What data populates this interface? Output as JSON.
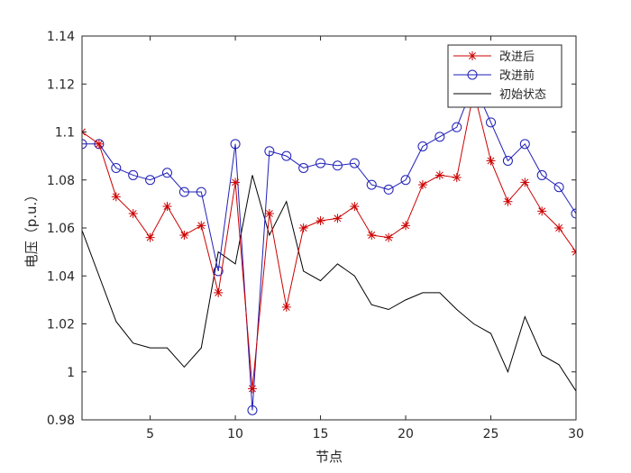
{
  "chart_data": {
    "type": "line",
    "xlabel": "节点",
    "ylabel": "电压（p.u.）",
    "xlim": [
      1,
      30
    ],
    "ylim": [
      0.98,
      1.14
    ],
    "xticks": [
      5,
      10,
      15,
      20,
      25,
      30
    ],
    "yticks": [
      0.98,
      1,
      1.02,
      1.04,
      1.06,
      1.08,
      1.1,
      1.12,
      1.14
    ],
    "ytick_labels": [
      "0.98",
      "1",
      "1.02",
      "1.04",
      "1.06",
      "1.08",
      "1.1",
      "1.12",
      "1.14"
    ],
    "legend_position": "top-right",
    "grid": false,
    "x": [
      1,
      2,
      3,
      4,
      5,
      6,
      7,
      8,
      9,
      10,
      11,
      12,
      13,
      14,
      15,
      16,
      17,
      18,
      19,
      20,
      21,
      22,
      23,
      24,
      25,
      26,
      27,
      28,
      29,
      30
    ],
    "series": [
      {
        "name": "改进后",
        "color": "#cc0000",
        "marker": "asterisk",
        "values": [
          1.1,
          1.095,
          1.073,
          1.066,
          1.056,
          1.069,
          1.057,
          1.061,
          1.033,
          1.079,
          0.993,
          1.066,
          1.027,
          1.06,
          1.063,
          1.064,
          1.069,
          1.057,
          1.056,
          1.061,
          1.078,
          1.082,
          1.081,
          1.117,
          1.088,
          1.071,
          1.079,
          1.067,
          1.06,
          1.05
        ]
      },
      {
        "name": "改进前",
        "color": "#1f1fb8",
        "marker": "circle",
        "values": [
          1.095,
          1.095,
          1.085,
          1.082,
          1.08,
          1.083,
          1.075,
          1.075,
          1.042,
          1.095,
          0.984,
          1.092,
          1.09,
          1.085,
          1.087,
          1.086,
          1.087,
          1.078,
          1.076,
          1.08,
          1.094,
          1.098,
          1.102,
          1.12,
          1.104,
          1.088,
          1.095,
          1.082,
          1.077,
          1.066
        ]
      },
      {
        "name": "初始状态",
        "color": "#000000",
        "marker": "none",
        "values": [
          1.059,
          1.04,
          1.021,
          1.012,
          1.01,
          1.01,
          1.002,
          1.01,
          1.05,
          1.045,
          1.082,
          1.057,
          1.071,
          1.042,
          1.038,
          1.045,
          1.04,
          1.028,
          1.026,
          1.03,
          1.033,
          1.033,
          1.026,
          1.02,
          1.016,
          1.0,
          1.023,
          1.007,
          1.003,
          0.992
        ]
      }
    ]
  }
}
